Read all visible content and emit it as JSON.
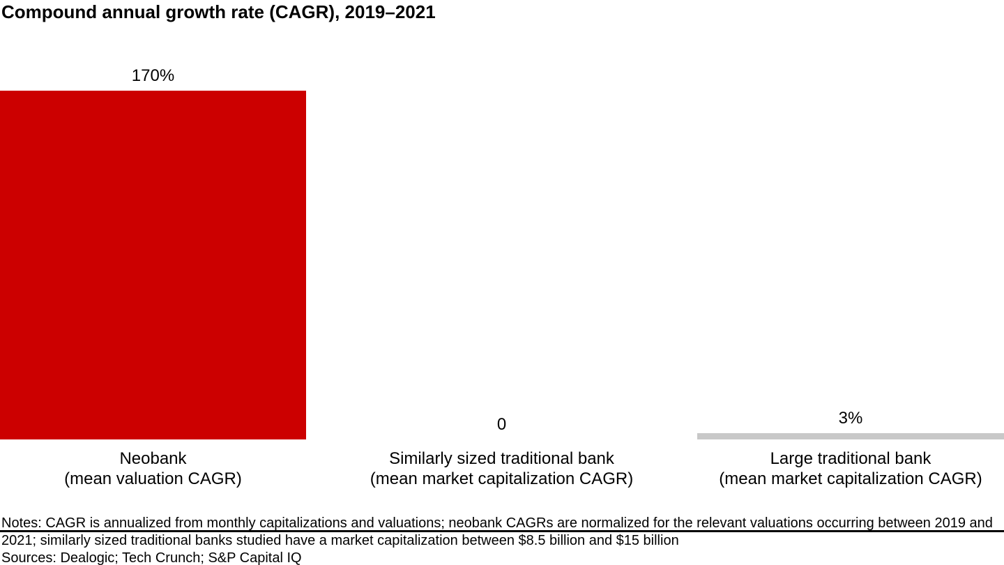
{
  "chart_data": {
    "type": "bar",
    "title": "Compound annual growth rate (CAGR), 2019–2021",
    "categories": [
      "Neobank\n(mean valuation CAGR)",
      "Similarly sized traditional bank\n(mean market capitalization CAGR)",
      "Large traditional bank\n(mean market capitalization CAGR)"
    ],
    "values": [
      170,
      0,
      3
    ],
    "value_labels": [
      "170%",
      "0",
      "3%"
    ],
    "bar_colors": [
      "#cc0000",
      "#c8c8c8",
      "#c8c8c8"
    ],
    "ylim": [
      0,
      170
    ],
    "xlabel": "",
    "ylabel": "",
    "grid": false,
    "legend": false,
    "axis_color": "#000000"
  },
  "footer": {
    "notes": "Notes: CAGR is annualized from monthly capitalizations and valuations; neobank CAGRs are normalized for the relevant valuations occurring between 2019 and 2021; similarly sized traditional banks studied have a market capitalization between $8.5 billion and $15 billion",
    "sources": "Sources: Dealogic; Tech Crunch; S&P Capital IQ"
  },
  "colors": {
    "accent_red": "#cc0000",
    "bar_gray": "#c8c8c8",
    "axis_black": "#000000",
    "background": "#ffffff"
  }
}
